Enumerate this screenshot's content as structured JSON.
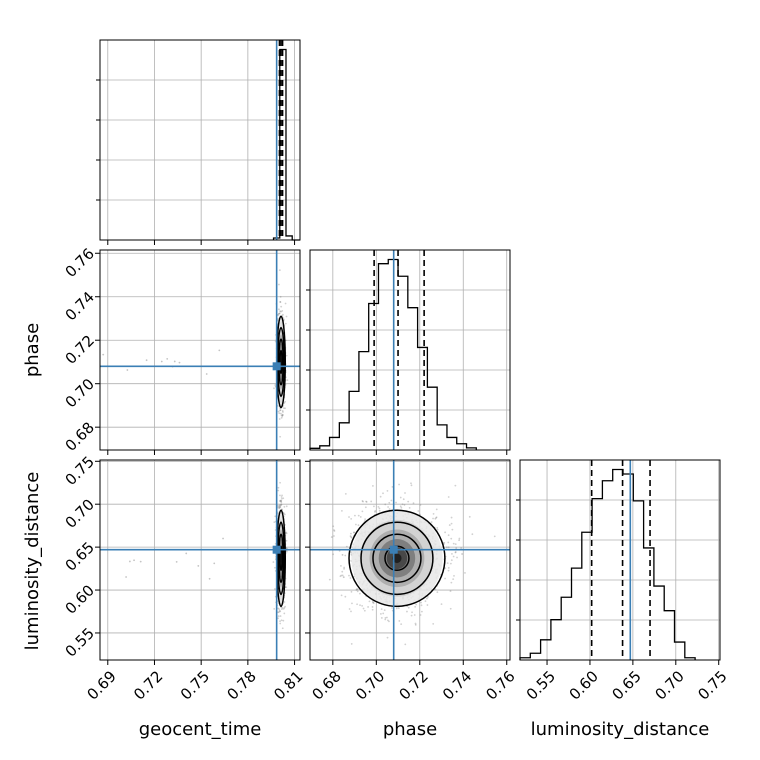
{
  "figure": {
    "accent_color": "#3b7fb5"
  },
  "chart_data": {
    "type": "corner",
    "parameters": [
      "geocent_time",
      "phase",
      "luminosity_distance"
    ],
    "truths": {
      "geocent_time": 0.7985,
      "phase": 0.708,
      "luminosity_distance": 0.647
    },
    "ranges": {
      "geocent_time": [
        0.685,
        0.8135
      ],
      "phase": [
        0.6695,
        0.7615
      ],
      "luminosity_distance": [
        0.5185,
        0.7515
      ]
    },
    "ticks": {
      "geocent_time": {
        "values": [
          0.69,
          0.72,
          0.75,
          0.78,
          0.81
        ],
        "labels": [
          "0.69",
          "0.72",
          "0.75",
          "0.78",
          "0.81"
        ]
      },
      "phase": {
        "values": [
          0.68,
          0.7,
          0.72,
          0.74,
          0.76
        ],
        "labels": [
          "0.68",
          "0.70",
          "0.72",
          "0.74",
          "0.76"
        ]
      },
      "luminosity_distance": {
        "values": [
          0.55,
          0.6,
          0.65,
          0.7,
          0.75
        ],
        "labels": [
          "0.55",
          "0.60",
          "0.65",
          "0.70",
          "0.75"
        ]
      }
    },
    "quantiles": {
      "geocent_time": [
        0.8003,
        0.8013,
        0.8023
      ],
      "phase": [
        0.699,
        0.71,
        0.722
      ],
      "luminosity_distance": [
        0.602,
        0.638,
        0.67
      ]
    },
    "hist1d": {
      "geocent_time": {
        "bin_edges": [
          0.7965,
          0.8005,
          0.8045,
          0.8085,
          0.8135
        ],
        "counts": [
          0.5,
          47.0,
          1.0,
          0.0
        ]
      },
      "phase": {
        "bin_edges": [
          0.6695,
          0.674,
          0.6785,
          0.683,
          0.6875,
          0.692,
          0.6965,
          0.701,
          0.7055,
          0.71,
          0.7145,
          0.719,
          0.7235,
          0.728,
          0.7325,
          0.737,
          0.7415,
          0.746
        ],
        "counts": [
          0.04,
          0.1,
          0.3,
          0.65,
          1.4,
          2.35,
          3.5,
          4.45,
          4.55,
          4.15,
          3.4,
          2.45,
          1.5,
          0.6,
          0.3,
          0.15,
          0.05
        ]
      },
      "luminosity_distance": {
        "bin_edges": [
          0.5185,
          0.5305,
          0.5425,
          0.5545,
          0.5665,
          0.5785,
          0.5905,
          0.6025,
          0.6145,
          0.6265,
          0.6385,
          0.6505,
          0.6625,
          0.6745,
          0.6865,
          0.6985,
          0.7105,
          0.7225
        ],
        "counts": [
          0.05,
          0.15,
          0.45,
          0.9,
          1.4,
          2.05,
          2.85,
          3.6,
          4.0,
          4.25,
          4.15,
          3.55,
          2.5,
          1.65,
          1.1,
          0.4,
          0.05
        ]
      }
    },
    "posterior_2d": {
      "geocent_time_phase": {
        "center": [
          0.8013,
          0.71
        ],
        "sigma": [
          0.0013,
          0.0105
        ]
      },
      "geocent_time_luminosity_distance": {
        "center": [
          0.8013,
          0.637
        ],
        "sigma": [
          0.0013,
          0.028
        ]
      },
      "phase_luminosity_distance": {
        "center": [
          0.7095,
          0.637
        ],
        "sigma": [
          0.0105,
          0.028
        ]
      }
    },
    "grid": true
  }
}
